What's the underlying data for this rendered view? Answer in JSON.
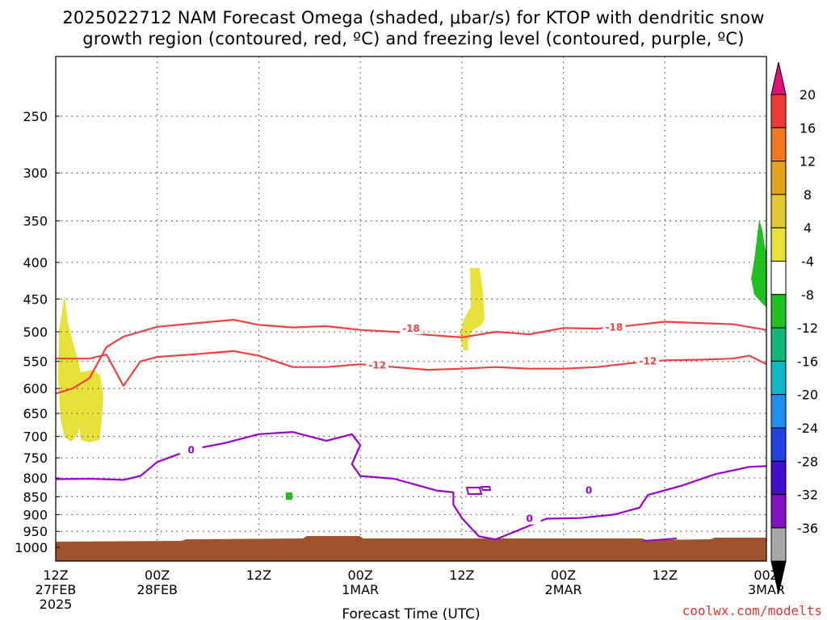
{
  "title_line1": "2025022712 NAM Forecast Omega (shaded, μbar/s) for KTOP with dendritic snow",
  "title_line2": "growth region (contoured, red, ºC) and freezing level (contoured, purple, ºC)",
  "credit": "coolwx.com/modelts",
  "colors": {
    "temp_contour": "#f04040",
    "freezing_contour": "#9b00d0",
    "ground": "#a0522d",
    "grid": "#555555"
  },
  "chart_data": {
    "type": "heatmap",
    "xlabel": "Forecast Time (UTC)",
    "ylabel": "",
    "x_ticks": [
      {
        "hour": 0,
        "label": "12Z",
        "sub": "27FEB",
        "sub2": "2025"
      },
      {
        "hour": 12,
        "label": "00Z",
        "sub": "28FEB",
        "sub2": ""
      },
      {
        "hour": 24,
        "label": "12Z",
        "sub": "",
        "sub2": ""
      },
      {
        "hour": 36,
        "label": "00Z",
        "sub": "1MAR",
        "sub2": ""
      },
      {
        "hour": 48,
        "label": "12Z",
        "sub": "",
        "sub2": ""
      },
      {
        "hour": 60,
        "label": "00Z",
        "sub": "2MAR",
        "sub2": ""
      },
      {
        "hour": 72,
        "label": "12Z",
        "sub": "",
        "sub2": ""
      },
      {
        "hour": 84,
        "label": "00Z",
        "sub": "3MAR",
        "sub2": ""
      }
    ],
    "xlim": [
      0,
      84
    ],
    "y_pressure_levels": [
      250,
      300,
      350,
      400,
      450,
      500,
      550,
      600,
      650,
      700,
      750,
      800,
      850,
      900,
      950,
      1000
    ],
    "y_scale": "log-pressure, inverted",
    "ylim": [
      1000,
      200
    ],
    "colorbar": {
      "labels": [
        "20",
        "16",
        "12",
        "8",
        "4",
        "-4",
        "-8",
        "-12",
        "-16",
        "-20",
        "-24",
        "-28",
        "-32",
        "-36"
      ],
      "levels": [
        20,
        16,
        12,
        8,
        4,
        -4,
        -8,
        -12,
        -16,
        -20,
        -24,
        -28,
        -32,
        -36
      ],
      "colors": [
        "#f03a3a",
        "#f07820",
        "#e8a020",
        "#e6c830",
        "#e6e23a",
        "#ffffff",
        "#20c020",
        "#10b878",
        "#10b8c8",
        "#2090f0",
        "#2040e0",
        "#4010c8",
        "#8010c0",
        "#a8a8a8"
      ],
      "top_arrow_color": "#e0107a",
      "bottom_arrow_color": "#000000"
    },
    "contours": [
      {
        "label": "-18",
        "color": "#f04040",
        "points": [
          [
            0,
            610
          ],
          [
            2,
            600
          ],
          [
            4,
            580
          ],
          [
            6,
            525
          ],
          [
            8,
            508
          ],
          [
            12,
            492
          ],
          [
            16,
            487
          ],
          [
            21,
            481
          ],
          [
            24,
            489
          ],
          [
            28,
            493
          ],
          [
            32,
            491
          ],
          [
            36,
            497
          ],
          [
            40,
            500
          ],
          [
            44,
            505
          ],
          [
            48,
            509
          ],
          [
            52,
            500
          ],
          [
            56,
            504
          ],
          [
            60,
            494
          ],
          [
            64,
            495
          ],
          [
            68,
            490
          ],
          [
            72,
            484
          ],
          [
            76,
            486
          ],
          [
            80,
            488
          ],
          [
            84,
            497
          ]
        ]
      },
      {
        "label": "-12",
        "color": "#f04040",
        "points": [
          [
            0,
            545
          ],
          [
            4,
            545
          ],
          [
            6,
            538
          ],
          [
            8,
            595
          ],
          [
            10,
            550
          ],
          [
            12,
            542
          ],
          [
            16,
            538
          ],
          [
            21,
            532
          ],
          [
            24,
            540
          ],
          [
            28,
            560
          ],
          [
            32,
            560
          ],
          [
            36,
            555
          ],
          [
            40,
            560
          ],
          [
            44,
            565
          ],
          [
            48,
            563
          ],
          [
            52,
            560
          ],
          [
            56,
            563
          ],
          [
            60,
            563
          ],
          [
            64,
            560
          ],
          [
            68,
            553
          ],
          [
            72,
            548
          ],
          [
            76,
            547
          ],
          [
            80,
            545
          ],
          [
            82,
            540
          ],
          [
            84,
            555
          ]
        ]
      },
      {
        "label": "0",
        "color": "#9b00d0",
        "points": [
          [
            0,
            803
          ],
          [
            4,
            802
          ],
          [
            8,
            805
          ],
          [
            10,
            795
          ],
          [
            12,
            760
          ],
          [
            16,
            730
          ],
          [
            20,
            715
          ],
          [
            24,
            695
          ],
          [
            28,
            690
          ],
          [
            32,
            710
          ],
          [
            35,
            695
          ],
          [
            36,
            720
          ],
          [
            35,
            765
          ],
          [
            36,
            795
          ],
          [
            40,
            802
          ],
          [
            45,
            833
          ],
          [
            47,
            838
          ],
          [
            47,
            872
          ],
          [
            48,
            910
          ],
          [
            50,
            965
          ],
          [
            52,
            975
          ],
          [
            58,
            912
          ],
          [
            62,
            910
          ],
          [
            66,
            900
          ],
          [
            69,
            880
          ],
          [
            70,
            845
          ],
          [
            74,
            820
          ],
          [
            78,
            790
          ],
          [
            82,
            772
          ],
          [
            84,
            770
          ]
        ]
      }
    ],
    "omega_regions": [
      {
        "value": 5,
        "label": "positive 4-8",
        "color": "#e6e23a"
      },
      {
        "value": -6,
        "label": "negative -4 to -8",
        "color": "#20c020"
      }
    ]
  }
}
